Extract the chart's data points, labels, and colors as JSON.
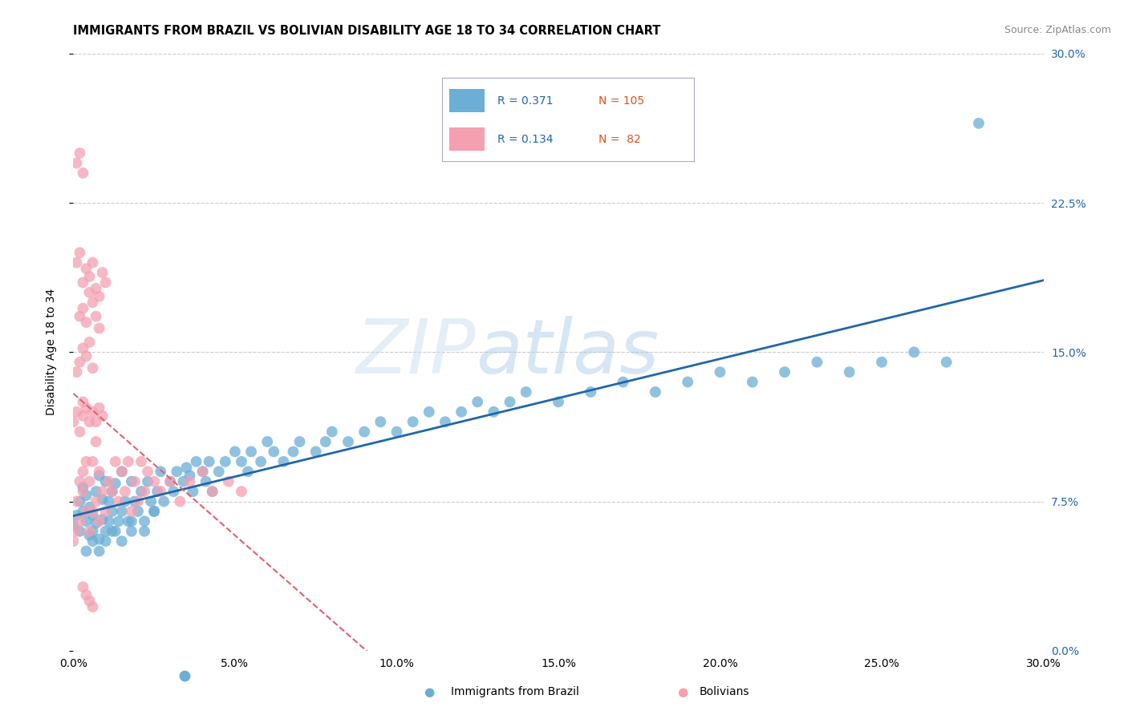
{
  "title": "IMMIGRANTS FROM BRAZIL VS BOLIVIAN DISABILITY AGE 18 TO 34 CORRELATION CHART",
  "source_text": "Source: ZipAtlas.com",
  "ylabel": "Disability Age 18 to 34",
  "xlim": [
    0,
    0.3
  ],
  "ylim": [
    0,
    0.3
  ],
  "watermark_zip": "ZIP",
  "watermark_atlas": "atlas",
  "brazil_color": "#6baed6",
  "bolivian_color": "#f4a0b0",
  "brazil_line_color": "#2166ac",
  "bolivian_line_color": "#e06070",
  "legend_brazil_r": "0.371",
  "legend_brazil_n": "105",
  "legend_bolivian_r": "0.134",
  "legend_bolivian_n": "82",
  "brazil_x": [
    0.0,
    0.001,
    0.002,
    0.002,
    0.003,
    0.003,
    0.004,
    0.004,
    0.005,
    0.005,
    0.006,
    0.006,
    0.007,
    0.007,
    0.008,
    0.008,
    0.009,
    0.009,
    0.01,
    0.01,
    0.011,
    0.011,
    0.012,
    0.012,
    0.013,
    0.013,
    0.014,
    0.015,
    0.015,
    0.016,
    0.017,
    0.018,
    0.018,
    0.019,
    0.02,
    0.021,
    0.022,
    0.023,
    0.024,
    0.025,
    0.026,
    0.027,
    0.028,
    0.03,
    0.031,
    0.032,
    0.034,
    0.035,
    0.036,
    0.037,
    0.038,
    0.04,
    0.041,
    0.042,
    0.043,
    0.045,
    0.047,
    0.05,
    0.052,
    0.054,
    0.055,
    0.058,
    0.06,
    0.062,
    0.065,
    0.068,
    0.07,
    0.075,
    0.078,
    0.08,
    0.085,
    0.09,
    0.095,
    0.1,
    0.105,
    0.11,
    0.115,
    0.12,
    0.125,
    0.13,
    0.135,
    0.14,
    0.15,
    0.16,
    0.17,
    0.18,
    0.19,
    0.2,
    0.21,
    0.22,
    0.23,
    0.24,
    0.25,
    0.26,
    0.27,
    0.28,
    0.004,
    0.006,
    0.008,
    0.01,
    0.012,
    0.015,
    0.018,
    0.022,
    0.025
  ],
  "brazil_y": [
    0.063,
    0.068,
    0.06,
    0.075,
    0.07,
    0.082,
    0.065,
    0.078,
    0.058,
    0.072,
    0.06,
    0.068,
    0.064,
    0.08,
    0.056,
    0.088,
    0.066,
    0.076,
    0.06,
    0.085,
    0.065,
    0.075,
    0.07,
    0.08,
    0.06,
    0.084,
    0.065,
    0.07,
    0.09,
    0.075,
    0.065,
    0.085,
    0.06,
    0.075,
    0.07,
    0.08,
    0.065,
    0.085,
    0.075,
    0.07,
    0.08,
    0.09,
    0.075,
    0.085,
    0.08,
    0.09,
    0.085,
    0.092,
    0.088,
    0.08,
    0.095,
    0.09,
    0.085,
    0.095,
    0.08,
    0.09,
    0.095,
    0.1,
    0.095,
    0.09,
    0.1,
    0.095,
    0.105,
    0.1,
    0.095,
    0.1,
    0.105,
    0.1,
    0.105,
    0.11,
    0.105,
    0.11,
    0.115,
    0.11,
    0.115,
    0.12,
    0.115,
    0.12,
    0.125,
    0.12,
    0.125,
    0.13,
    0.125,
    0.13,
    0.135,
    0.13,
    0.135,
    0.14,
    0.135,
    0.14,
    0.145,
    0.14,
    0.145,
    0.15,
    0.145,
    0.265,
    0.05,
    0.055,
    0.05,
    0.055,
    0.06,
    0.055,
    0.065,
    0.06,
    0.07
  ],
  "bolivian_x": [
    0.0,
    0.001,
    0.001,
    0.002,
    0.002,
    0.003,
    0.003,
    0.004,
    0.004,
    0.005,
    0.005,
    0.006,
    0.006,
    0.007,
    0.007,
    0.008,
    0.008,
    0.009,
    0.01,
    0.011,
    0.012,
    0.013,
    0.014,
    0.015,
    0.016,
    0.017,
    0.018,
    0.019,
    0.02,
    0.021,
    0.022,
    0.023,
    0.025,
    0.027,
    0.03,
    0.033,
    0.036,
    0.04,
    0.043,
    0.048,
    0.052,
    0.0,
    0.001,
    0.002,
    0.003,
    0.003,
    0.004,
    0.005,
    0.006,
    0.007,
    0.008,
    0.009,
    0.001,
    0.002,
    0.003,
    0.004,
    0.005,
    0.006,
    0.002,
    0.003,
    0.004,
    0.005,
    0.006,
    0.007,
    0.008,
    0.001,
    0.002,
    0.003,
    0.004,
    0.005,
    0.006,
    0.007,
    0.008,
    0.009,
    0.01,
    0.001,
    0.002,
    0.003,
    0.003,
    0.004,
    0.005,
    0.006
  ],
  "bolivian_y": [
    0.055,
    0.06,
    0.075,
    0.065,
    0.085,
    0.08,
    0.09,
    0.07,
    0.095,
    0.06,
    0.085,
    0.07,
    0.095,
    0.075,
    0.105,
    0.065,
    0.09,
    0.08,
    0.07,
    0.085,
    0.08,
    0.095,
    0.075,
    0.09,
    0.08,
    0.095,
    0.07,
    0.085,
    0.075,
    0.095,
    0.08,
    0.09,
    0.085,
    0.08,
    0.085,
    0.075,
    0.085,
    0.09,
    0.08,
    0.085,
    0.08,
    0.115,
    0.12,
    0.11,
    0.125,
    0.118,
    0.122,
    0.115,
    0.12,
    0.115,
    0.122,
    0.118,
    0.14,
    0.145,
    0.152,
    0.148,
    0.155,
    0.142,
    0.168,
    0.172,
    0.165,
    0.18,
    0.175,
    0.168,
    0.162,
    0.195,
    0.2,
    0.185,
    0.192,
    0.188,
    0.195,
    0.182,
    0.178,
    0.19,
    0.185,
    0.245,
    0.25,
    0.24,
    0.032,
    0.028,
    0.025,
    0.022
  ]
}
